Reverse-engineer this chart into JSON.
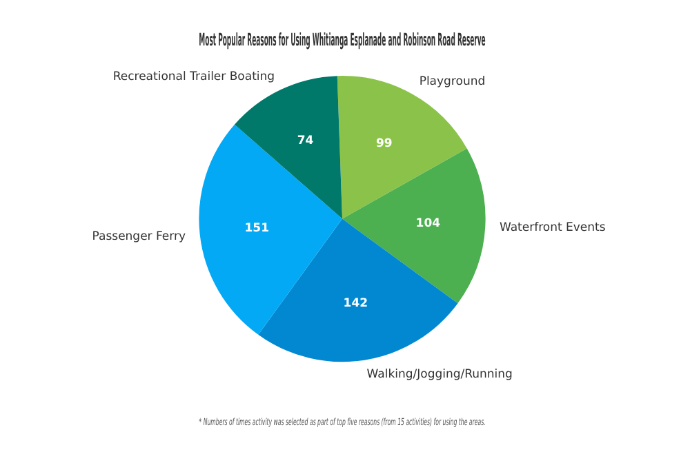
{
  "chart_data": {
    "type": "pie",
    "title": "Most Popular Reasons for Using Whitianga Esplanade and Robinson Road Reserve",
    "categories": [
      "Playground",
      "Waterfront Events",
      "Walking/Jogging/Running",
      "Passenger Ferry",
      "Recreational Trailer Boating"
    ],
    "values": [
      99,
      104,
      142,
      151,
      74
    ],
    "colors": [
      "#8bc34a",
      "#4caf50",
      "#0288d1",
      "#03a9f4",
      "#00796b"
    ],
    "data_labels": true,
    "annotations": [
      "* Numbers of times activity was selected as part of top five reasons (from 15 activities) for using the areas."
    ]
  }
}
